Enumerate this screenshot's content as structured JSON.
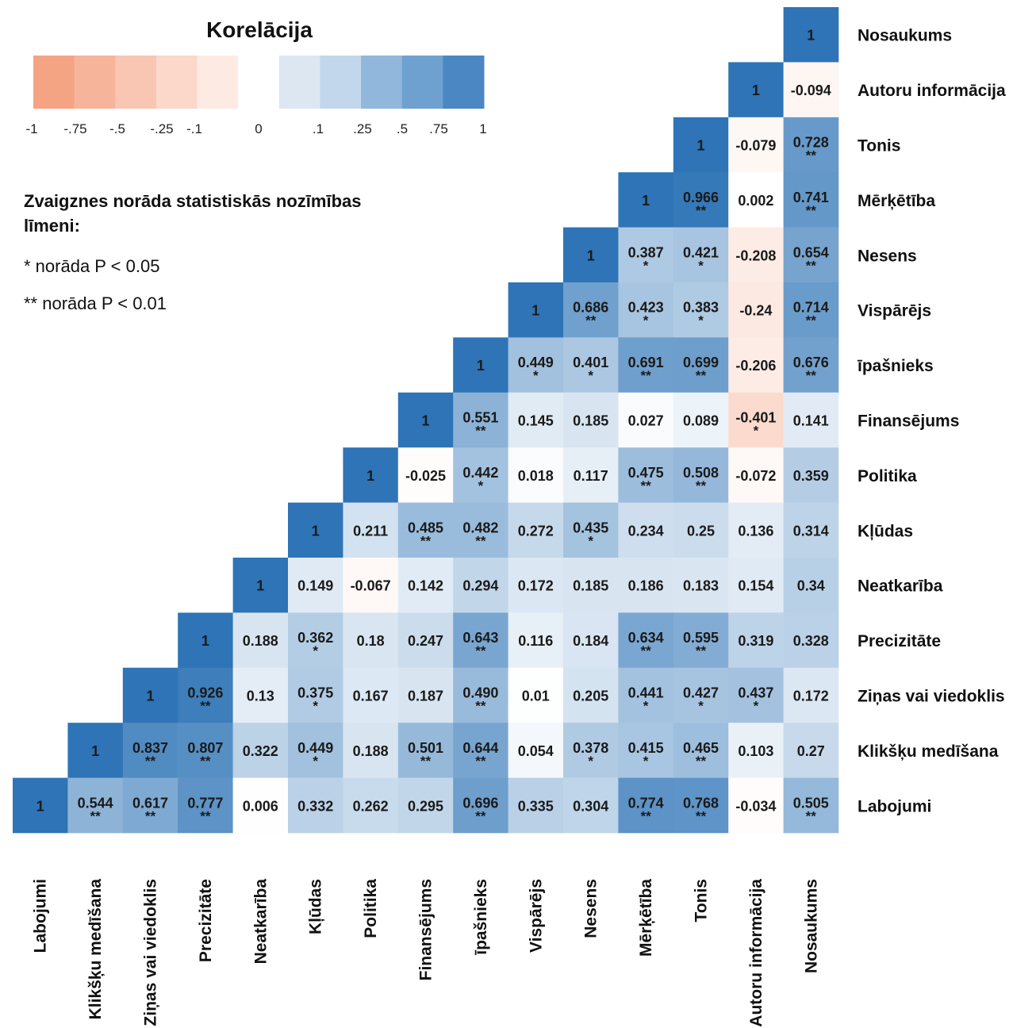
{
  "chart_data": {
    "type": "heatmap",
    "title": "Korelācija",
    "legend": {
      "tick_labels": [
        "-1",
        "-.75",
        "-.5",
        "-.25",
        "-.1",
        "0",
        ".1",
        ".25",
        ".5",
        ".75",
        "1"
      ],
      "colors": [
        "#f4a482",
        "#f6b59b",
        "#f8c6b3",
        "#fbd8ca",
        "#fdebe3",
        "#ffffff",
        "#dde7f2",
        "#c2d7eb",
        "#92b7dc",
        "#6fa1d0",
        "#4a87c3"
      ],
      "placement": "top-left"
    },
    "significance_note": {
      "title": "Zvaigznes norāda statistiskās nozīmības līmeni:",
      "lines": [
        "* norāda P < 0.05",
        "** norāda P < 0.01"
      ]
    },
    "variables": [
      "Labojumi",
      "Klikšķu medīšana",
      "Ziņas vai viedoklis",
      "Precizitāte",
      "Neatkarība",
      "Kļūdas",
      "Politika",
      "Finansējums",
      "īpašnieks",
      "Vispārējs",
      "Nesens",
      "Mērķētība",
      "Tonis",
      "Autoru informācija",
      "Nosaukums"
    ],
    "rows": [
      {
        "name": "Nosaukums",
        "values": [
          "1"
        ],
        "stars": [
          ""
        ]
      },
      {
        "name": "Autoru informācija",
        "values": [
          "1",
          "-0.094"
        ],
        "stars": [
          "",
          ""
        ]
      },
      {
        "name": "Tonis",
        "values": [
          "1",
          "-0.079",
          "0.728"
        ],
        "stars": [
          "",
          "",
          "**"
        ]
      },
      {
        "name": "Mērķētība",
        "values": [
          "1",
          "0.966",
          "0.002",
          "0.741"
        ],
        "stars": [
          "",
          "**",
          "",
          "**"
        ]
      },
      {
        "name": "Nesens",
        "values": [
          "1",
          "0.387",
          "0.421",
          "-0.208",
          "0.654"
        ],
        "stars": [
          "",
          "*",
          "*",
          "",
          "**"
        ]
      },
      {
        "name": "Vispārējs",
        "values": [
          "1",
          "0.686",
          "0.423",
          "0.383",
          "-0.24",
          "0.714"
        ],
        "stars": [
          "",
          "**",
          "*",
          "*",
          "",
          "**"
        ]
      },
      {
        "name": "īpašnieks",
        "values": [
          "1",
          "0.449",
          "0.401",
          "0.691",
          "0.699",
          "-0.206",
          "0.676"
        ],
        "stars": [
          "",
          "*",
          "*",
          "**",
          "**",
          "",
          "**"
        ]
      },
      {
        "name": "Finansējums",
        "values": [
          "1",
          "0.551",
          "0.145",
          "0.185",
          "0.027",
          "0.089",
          "-0.401",
          "0.141"
        ],
        "stars": [
          "",
          "**",
          "",
          "",
          "",
          "",
          "*",
          ""
        ]
      },
      {
        "name": "Politika",
        "values": [
          "1",
          "-0.025",
          "0.442",
          "0.018",
          "0.117",
          "0.475",
          "0.508",
          "-0.072",
          "0.359"
        ],
        "stars": [
          "",
          "",
          "*",
          "",
          "",
          "**",
          "**",
          "",
          ""
        ]
      },
      {
        "name": "Kļūdas",
        "values": [
          "1",
          "0.211",
          "0.485",
          "0.482",
          "0.272",
          "0.435",
          "0.234",
          "0.25",
          "0.136",
          "0.314"
        ],
        "stars": [
          "",
          "",
          "**",
          "**",
          "",
          "*",
          "",
          "",
          "",
          ""
        ]
      },
      {
        "name": "Neatkarība",
        "values": [
          "1",
          "0.149",
          "-0.067",
          "0.142",
          "0.294",
          "0.172",
          "0.185",
          "0.186",
          "0.183",
          "0.154",
          "0.34"
        ],
        "stars": [
          "",
          "",
          "",
          "",
          "",
          "",
          "",
          "",
          "",
          "",
          ""
        ]
      },
      {
        "name": "Precizitāte",
        "values": [
          "1",
          "0.188",
          "0.362",
          "0.18",
          "0.247",
          "0.643",
          "0.116",
          "0.184",
          "0.634",
          "0.595",
          "0.319",
          "0.328"
        ],
        "stars": [
          "",
          "",
          "*",
          "",
          "",
          "**",
          "",
          "",
          "**",
          "**",
          "",
          ""
        ]
      },
      {
        "name": "Ziņas vai viedoklis",
        "values": [
          "1",
          "0.926",
          "0.13",
          "0.375",
          "0.167",
          "0.187",
          "0.490",
          "0.01",
          "0.205",
          "0.441",
          "0.427",
          "0.437",
          "0.172"
        ],
        "stars": [
          "",
          "**",
          "",
          "*",
          "",
          "",
          "**",
          "",
          "",
          "*",
          "*",
          "*",
          ""
        ]
      },
      {
        "name": "Klikšķu medīšana",
        "values": [
          "1",
          "0.837",
          "0.807",
          "0.322",
          "0.449",
          "0.188",
          "0.501",
          "0.644",
          "0.054",
          "0.378",
          "0.415",
          "0.465",
          "0.103",
          "0.27"
        ],
        "stars": [
          "",
          "**",
          "**",
          "",
          "*",
          "",
          "**",
          "**",
          "",
          "*",
          "*",
          "**",
          "",
          ""
        ]
      },
      {
        "name": "Labojumi",
        "values": [
          "1",
          "0.544",
          "0.617",
          "0.777",
          "0.006",
          "0.332",
          "0.262",
          "0.295",
          "0.696",
          "0.335",
          "0.304",
          "0.774",
          "0.768",
          "-0.034",
          "0.505"
        ],
        "stars": [
          "",
          "**",
          "**",
          "**",
          "",
          "",
          "",
          "",
          "**",
          "",
          "",
          "**",
          "**",
          "",
          "**"
        ]
      }
    ]
  }
}
